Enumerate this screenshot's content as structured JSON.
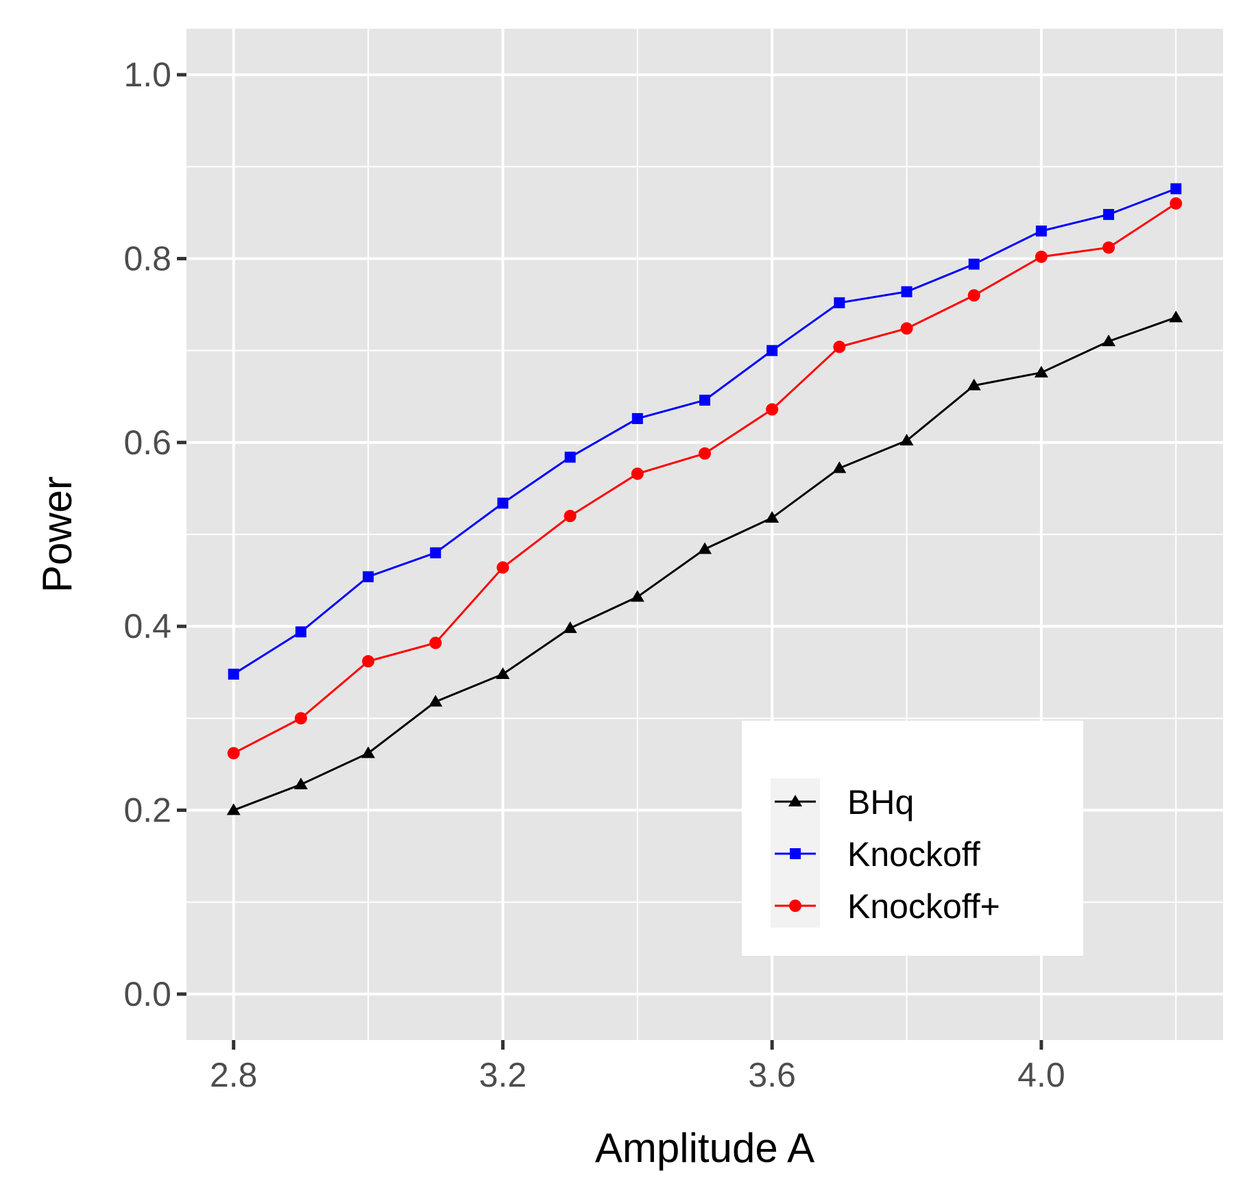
{
  "chart_data": {
    "type": "line",
    "xlabel": "Amplitude A",
    "ylabel": "Power",
    "x": [
      2.8,
      2.9,
      3.0,
      3.1,
      3.2,
      3.3,
      3.4,
      3.5,
      3.6,
      3.7,
      3.8,
      3.9,
      4.0,
      4.1,
      4.2
    ],
    "xlim": [
      2.73,
      4.27
    ],
    "ylim": [
      -0.05,
      1.05
    ],
    "xticks": [
      2.8,
      3.2,
      3.6,
      4.0
    ],
    "xtick_labels": [
      "2.8",
      "3.2",
      "3.6",
      "4.0"
    ],
    "yticks": [
      0.0,
      0.2,
      0.4,
      0.6,
      0.8,
      1.0
    ],
    "ytick_labels": [
      "0.0",
      "0.2",
      "0.4",
      "0.6",
      "0.8",
      "1.0"
    ],
    "grid": true,
    "legend_position": "bottom-right",
    "series": [
      {
        "name": "BHq",
        "color": "#000000",
        "marker": "triangle",
        "values": [
          0.2,
          0.228,
          0.262,
          0.318,
          0.348,
          0.398,
          0.432,
          0.484,
          0.518,
          0.572,
          0.602,
          0.662,
          0.676,
          0.71,
          0.736
        ]
      },
      {
        "name": "Knockoff",
        "color": "#0000ff",
        "marker": "square",
        "values": [
          0.348,
          0.394,
          0.454,
          0.48,
          0.534,
          0.584,
          0.626,
          0.646,
          0.7,
          0.752,
          0.764,
          0.794,
          0.83,
          0.848,
          0.876
        ]
      },
      {
        "name": "Knockoff+",
        "color": "#ff0000",
        "marker": "circle",
        "values": [
          0.262,
          0.3,
          0.362,
          0.382,
          0.464,
          0.52,
          0.566,
          0.588,
          0.636,
          0.704,
          0.724,
          0.76,
          0.802,
          0.812,
          0.86
        ]
      }
    ]
  }
}
